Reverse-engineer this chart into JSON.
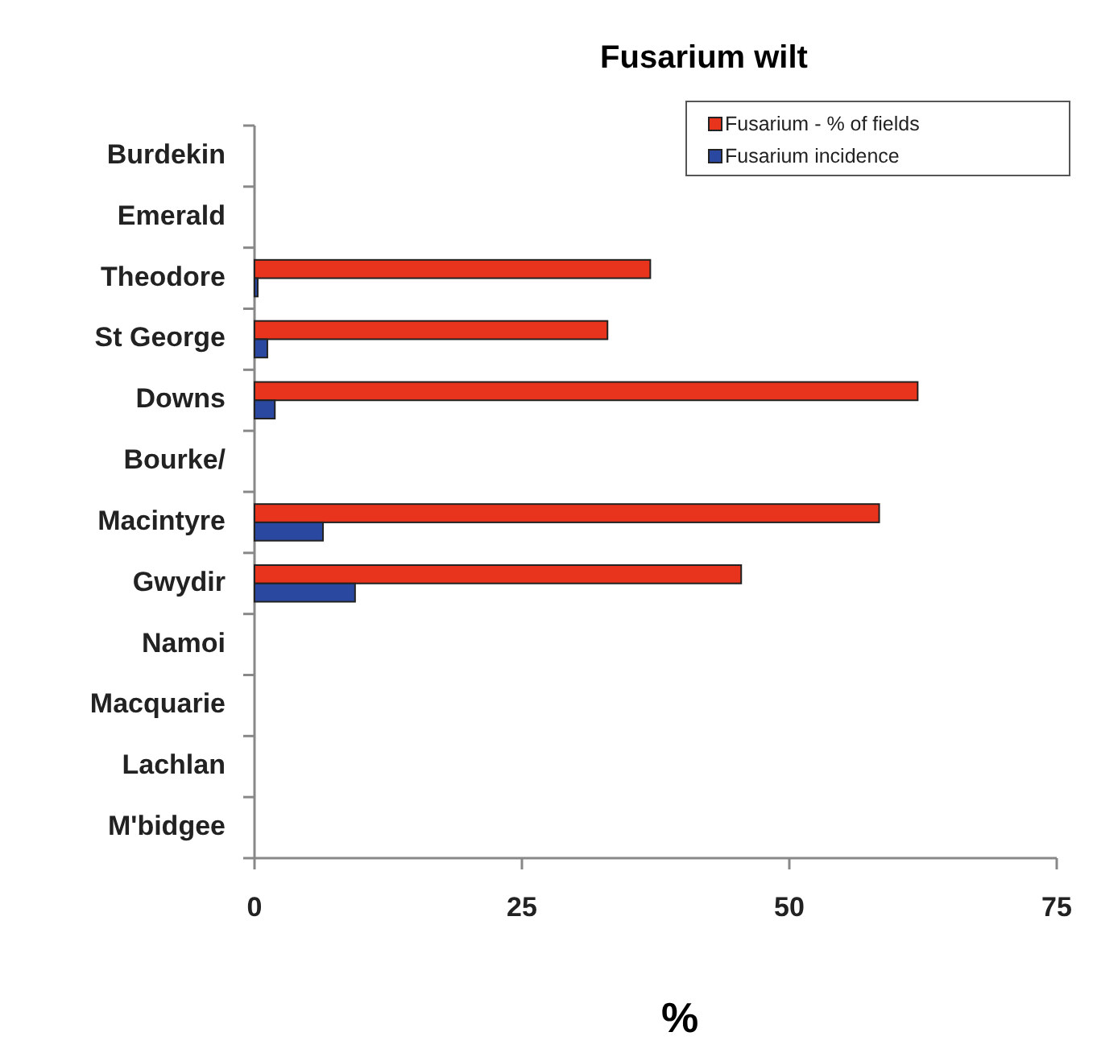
{
  "chart_data": {
    "type": "bar",
    "orientation": "horizontal",
    "title": "Fusarium wilt",
    "xlabel": "%",
    "categories": [
      "Burdekin",
      "Emerald",
      "Theodore",
      "St George",
      "Downs",
      "Bourke/",
      "Macintyre",
      "Gwydir",
      "Namoi",
      "Macquarie",
      "Lachlan",
      "M'bidgee"
    ],
    "series": [
      {
        "name": "Fusarium - % of fields",
        "color": "#e8341c",
        "values": [
          null,
          null,
          37,
          33,
          62,
          null,
          58.4,
          45.5,
          null,
          null,
          null,
          null
        ]
      },
      {
        "name": "Fusarium incidence",
        "color": "#2a48a0",
        "values": [
          null,
          null,
          0.3,
          1.2,
          1.9,
          null,
          6.4,
          9.4,
          null,
          null,
          null,
          null
        ]
      }
    ],
    "xlim": [
      0,
      75
    ],
    "xticks": [
      0,
      25,
      50,
      75
    ],
    "grid": false,
    "legend": "top right"
  }
}
